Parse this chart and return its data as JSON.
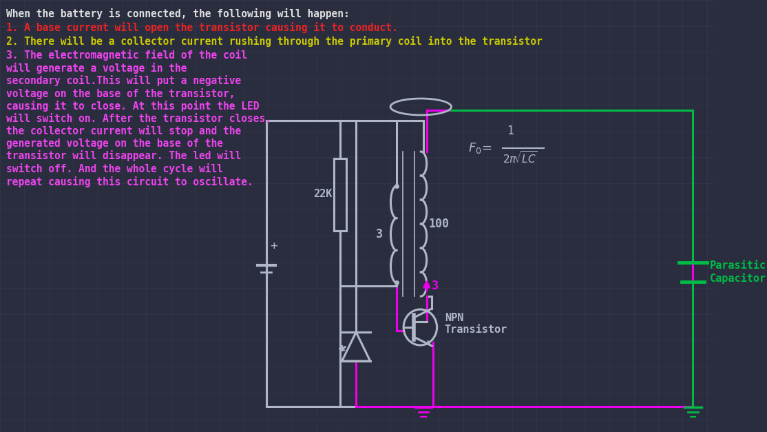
{
  "bg_color": "#2a2d3e",
  "grid_color": "#353850",
  "title_text": "When the battery is connected, the following will happen:",
  "line1_text": "1. A base current will open the transistor causing it to conduct.",
  "line2_text": "2. There will be a collector current rushing through the primary coil into the transistor",
  "line3_text": "3. The electromagnetic field of the coil\nwill generate a voltage in the\nsecondary coil.This will put a negative\nvoltage on the base of the transistor,\ncausing it to close. At this point the LED\nwill switch on. After the transistor closes,\nthe collector current will stop and the\ngenerated voltage on the base of the\ntransistor will disappear. The led will\nswitch off. And the whole cycle will\nrepeat causing this circuit to oscillate.",
  "title_color": "#e0e0e0",
  "line1_color": "#ee2222",
  "line2_color": "#cccc00",
  "line3_color": "#ee44ee",
  "magenta": "#ee00ee",
  "green": "#00bb44",
  "gray": "#b0b8c8",
  "lw": 2.2
}
